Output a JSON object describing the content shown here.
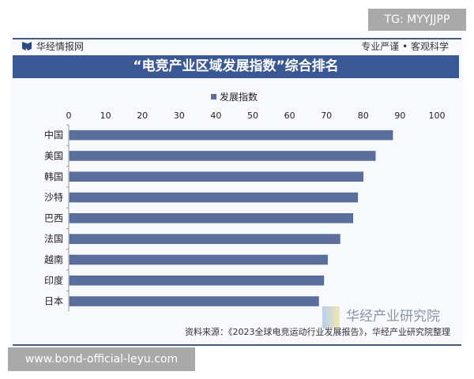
{
  "watermark_top": "TG: MYYJJPP",
  "watermark_bottom": "www.bond-official-leyu.com",
  "header": {
    "brand": "华经情报网",
    "slogan": "专业严谨 • 客观科学"
  },
  "footer": {
    "source": "资料来源：《2023全球电竞运动行业发展报告》，华经产业研究院整理",
    "logo_text": "华经产业研究院"
  },
  "colors": {
    "bar": "#5a6f9b",
    "title_bg": "#3a5893"
  },
  "chart_data": {
    "type": "bar",
    "orientation": "horizontal",
    "title": "“电竞产业区域发展指数”综合排名",
    "categories": [
      "中国",
      "美国",
      "韩国",
      "沙特",
      "巴西",
      "法国",
      "越南",
      "印度",
      "日本"
    ],
    "series": [
      {
        "name": "发展指数",
        "values": [
          88,
          83.3,
          80,
          78.5,
          77.2,
          73.7,
          70.3,
          69.3,
          67.9
        ]
      }
    ],
    "xlim": [
      0,
      100
    ],
    "xticks": [
      "0",
      "10",
      "20",
      "30",
      "40",
      "50",
      "60",
      "70",
      "80",
      "90",
      "100"
    ],
    "xaxis_position": "top",
    "legend": "top",
    "grid": false
  }
}
